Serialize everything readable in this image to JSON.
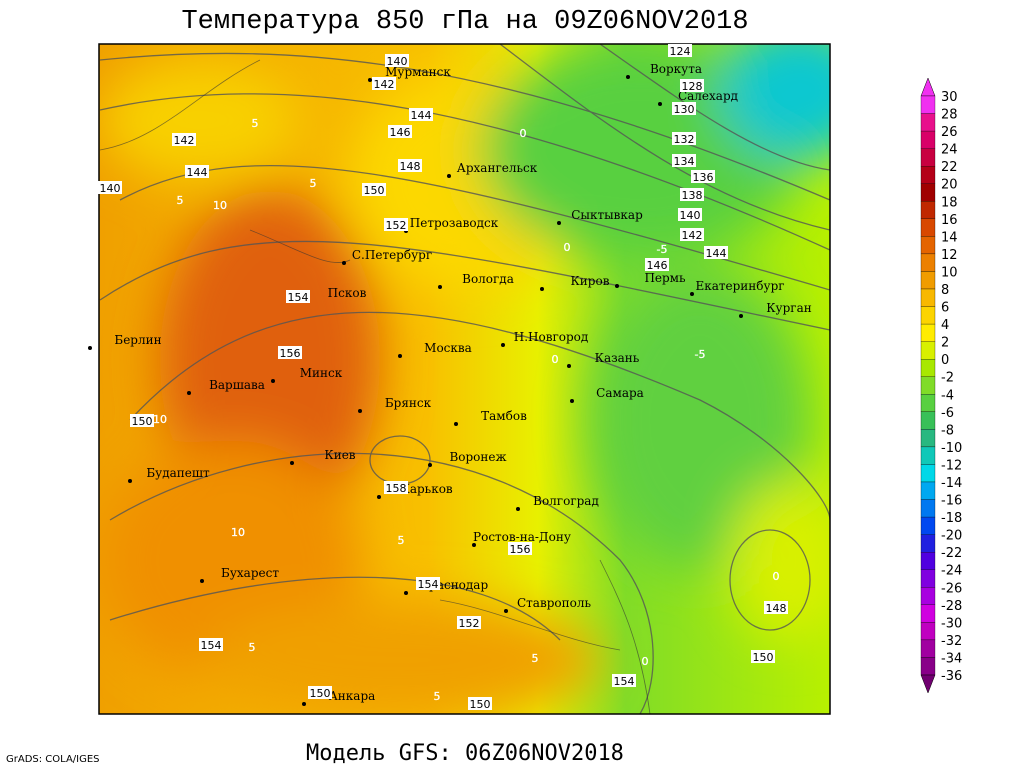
{
  "title": "Температура 850 гПа на 09Z06NOV2018",
  "footer": "Модель GFS: 06Z06NOV2018",
  "credit": "GrADS: COLA/IGES",
  "cities": [
    "Мурманск",
    "Воркута",
    "Салехард",
    "Архангельск",
    "Сыктывкар",
    "Петрозаводск",
    "С.Петербург",
    "Вологда",
    "Киров",
    "Пермь",
    "Екатеринбург",
    "Курган",
    "Псков",
    "Берлин",
    "Н.Новгород",
    "Москва",
    "Казань",
    "Минск",
    "Варшава",
    "Самара",
    "Брянск",
    "Тамбов",
    "Киев",
    "Воронеж",
    "Харьков",
    "Будапешт",
    "Волгоград",
    "Ростов-на-Дону",
    "Бухарест",
    "Краснодар",
    "Ставрополь",
    "Анкара"
  ],
  "height_labels": [
    124,
    140,
    142,
    128,
    130,
    144,
    146,
    142,
    132,
    148,
    134,
    144,
    136,
    140,
    150,
    138,
    140,
    152,
    142,
    144,
    146,
    154,
    156,
    150,
    158,
    156,
    154,
    152,
    154,
    148,
    150,
    154,
    150,
    150
  ],
  "temperature_labels": [
    5,
    5,
    5,
    10,
    0,
    0,
    -5,
    -5,
    0,
    10,
    10,
    5,
    5,
    5,
    0,
    0,
    5
  ],
  "colorbar": [
    {
      "value": 30,
      "color": "#f030f0"
    },
    {
      "value": 28,
      "color": "#e8108c"
    },
    {
      "value": 26,
      "color": "#d80068"
    },
    {
      "value": 24,
      "color": "#c80040"
    },
    {
      "value": 22,
      "color": "#b40018"
    },
    {
      "value": 20,
      "color": "#a00000"
    },
    {
      "value": 18,
      "color": "#c02800"
    },
    {
      "value": 16,
      "color": "#d84800"
    },
    {
      "value": 14,
      "color": "#e46400"
    },
    {
      "value": 12,
      "color": "#ec8000"
    },
    {
      "value": 10,
      "color": "#f09c00"
    },
    {
      "value": 8,
      "color": "#f8b800"
    },
    {
      "value": 6,
      "color": "#fcd400"
    },
    {
      "value": 4,
      "color": "#ffec00"
    },
    {
      "value": 2,
      "color": "#d8f000"
    },
    {
      "value": 0,
      "color": "#a8e800"
    },
    {
      "value": -2,
      "color": "#80dc28"
    },
    {
      "value": -4,
      "color": "#58d040"
    },
    {
      "value": -6,
      "color": "#38c058"
    },
    {
      "value": -8,
      "color": "#28b880"
    },
    {
      "value": -10,
      "color": "#10c8b8"
    },
    {
      "value": -12,
      "color": "#00d8e8"
    },
    {
      "value": -14,
      "color": "#00a8f0"
    },
    {
      "value": -16,
      "color": "#0078f0"
    },
    {
      "value": -18,
      "color": "#0048f0"
    },
    {
      "value": -20,
      "color": "#2020e0"
    },
    {
      "value": -22,
      "color": "#5000e0"
    },
    {
      "value": -24,
      "color": "#8000e0"
    },
    {
      "value": -26,
      "color": "#a800e0"
    },
    {
      "value": -28,
      "color": "#d000e0"
    },
    {
      "value": -30,
      "color": "#c000c0"
    },
    {
      "value": -32,
      "color": "#a000a0"
    },
    {
      "value": -34,
      "color": "#880088"
    },
    {
      "value": -36,
      "color": "#700070"
    }
  ]
}
